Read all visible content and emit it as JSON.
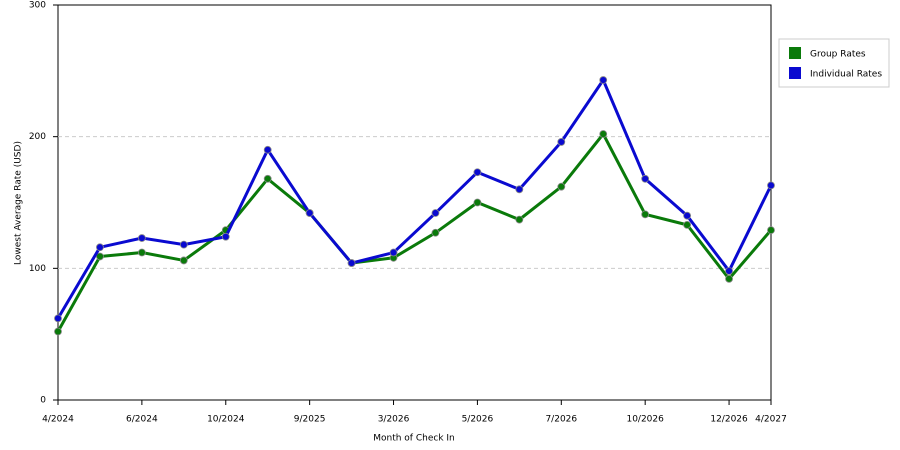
{
  "chart_data": {
    "type": "line",
    "x_label": "Month of Check In",
    "y_label": "Lowest Average Rate (USD)",
    "categories": [
      "4/2024",
      null,
      "6/2024",
      null,
      "10/2024",
      null,
      "9/2025",
      null,
      "3/2026",
      null,
      "5/2026",
      null,
      "7/2026",
      null,
      "10/2026",
      null,
      "12/2026",
      "4/2027"
    ],
    "series": [
      {
        "name": "Group Rates",
        "color": "#0a7a0a",
        "values": [
          52,
          109,
          112,
          106,
          129,
          168,
          142,
          104,
          108,
          127,
          150,
          137,
          162,
          202,
          141,
          133,
          92,
          129
        ]
      },
      {
        "name": "Individual Rates",
        "color": "#0a0ad0",
        "values": [
          62,
          116,
          123,
          118,
          124,
          190,
          142,
          104,
          112,
          142,
          173,
          160,
          196,
          243,
          168,
          140,
          98,
          163
        ]
      }
    ],
    "ylim": [
      0,
      300
    ],
    "yticks": [
      0,
      100,
      200,
      300
    ],
    "grid": true,
    "legend": "right"
  }
}
